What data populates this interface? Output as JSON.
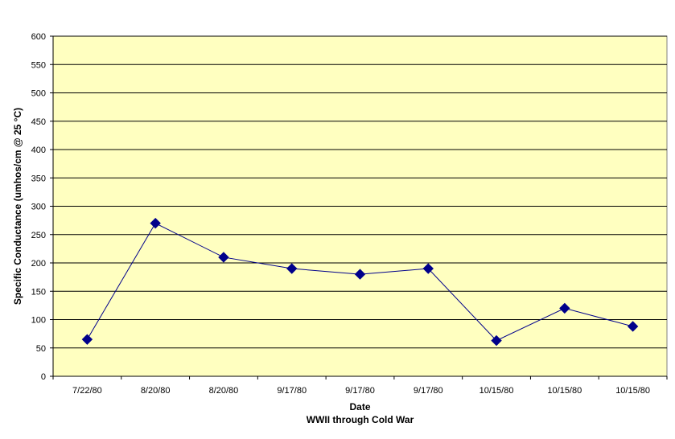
{
  "chart_data": {
    "type": "line",
    "title": "",
    "xlabel": "Date",
    "xlabel_sub": "WWII through Cold War",
    "ylabel": "Specific Conductance (umhos/cm @ 25 °C)",
    "ylim": [
      0,
      600
    ],
    "yticks": [
      0,
      50,
      100,
      150,
      200,
      250,
      300,
      350,
      400,
      450,
      500,
      550,
      600
    ],
    "grid": true,
    "legend": "none",
    "categories": [
      "7/22/80",
      "8/20/80",
      "8/20/80",
      "9/17/80",
      "9/17/80",
      "9/17/80",
      "10/15/80",
      "10/15/80",
      "10/15/80"
    ],
    "series": [
      {
        "values": [
          65,
          270,
          210,
          190,
          180,
          190,
          63,
          120,
          88
        ]
      }
    ],
    "colors": {
      "plot_background": "#FFFFC0",
      "series": "#00008B",
      "marker": "#00008B",
      "gridline": "#000000"
    },
    "marker": "diamond-icon"
  }
}
